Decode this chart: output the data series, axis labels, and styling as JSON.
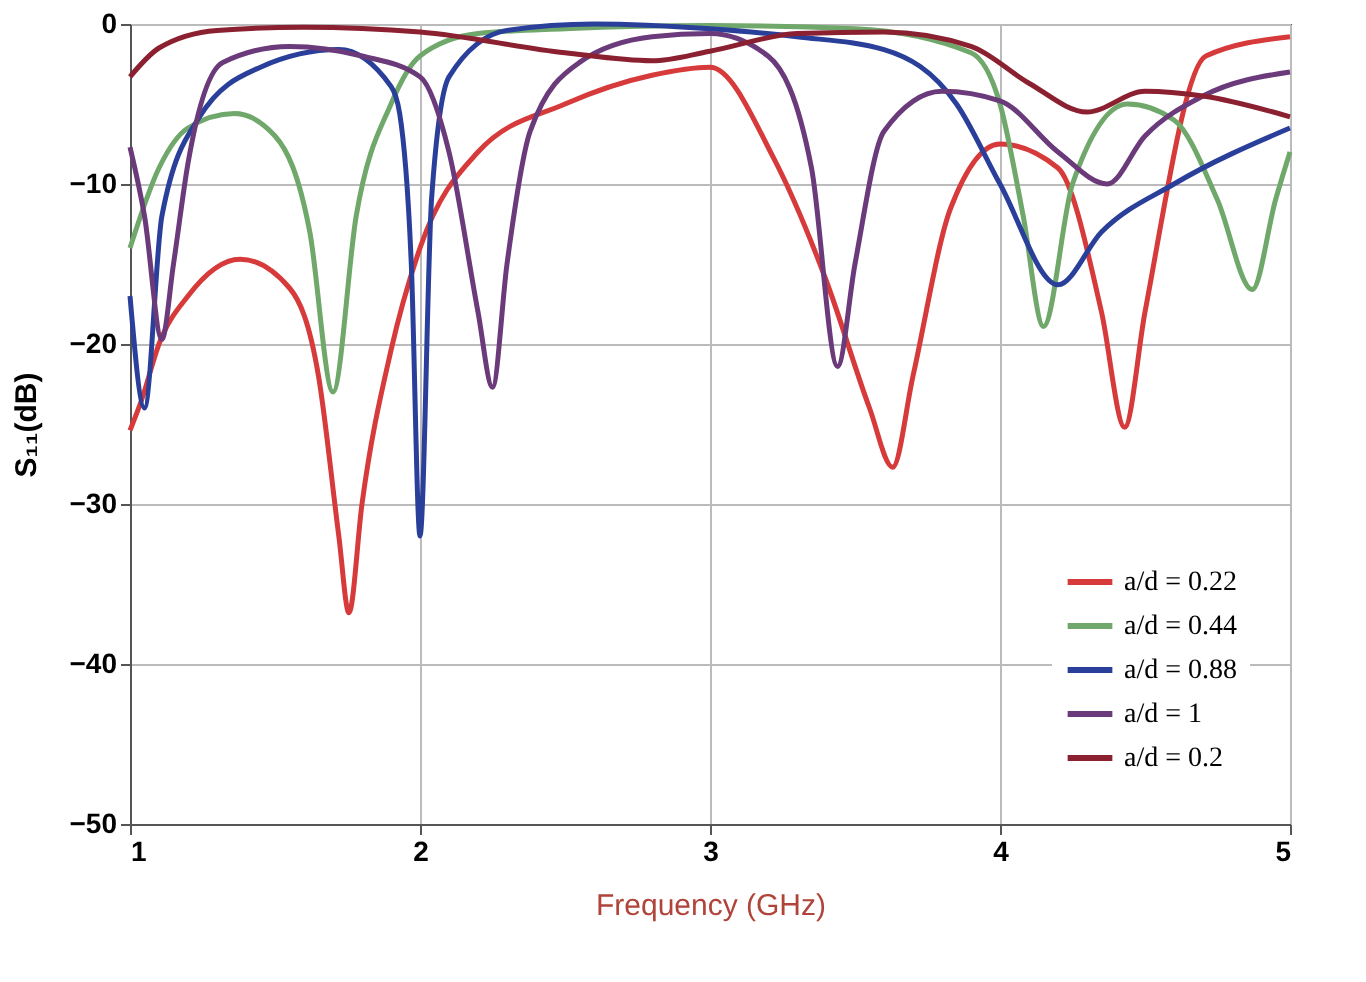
{
  "chart_data": {
    "type": "line",
    "xlabel": "Frequency (GHz)",
    "ylabel": "S₁₁(dB)",
    "xlim": [
      1,
      5
    ],
    "ylim": [
      -50,
      0
    ],
    "xticks": [
      1,
      2,
      3,
      4,
      5
    ],
    "yticks": [
      -50,
      -40,
      -30,
      -20,
      -10,
      0
    ],
    "grid": true,
    "legend": "bottom right",
    "line_style": "solid",
    "marker": "none",
    "series": [
      {
        "name": "a/d = 0.22",
        "color": "#d63a3a",
        "x": [
          1.0,
          1.04,
          1.1,
          1.2,
          1.38,
          1.55,
          1.65,
          1.72,
          1.755,
          1.8,
          1.9,
          2.0,
          2.2,
          2.5,
          2.8,
          3.0,
          3.22,
          3.4,
          3.55,
          3.63,
          3.7,
          3.83,
          4.0,
          4.2,
          4.35,
          4.43,
          4.5,
          4.71,
          5.0
        ],
        "values": [
          -25.4,
          -23.5,
          -20,
          -17,
          -14.7,
          -16.5,
          -22,
          -32,
          -36.8,
          -30,
          -20.4,
          -14,
          -8,
          -5,
          -3.2,
          -2.7,
          -8.4,
          -16,
          -24,
          -27.7,
          -22,
          -11.5,
          -7.5,
          -9,
          -18,
          -25.2,
          -18,
          -2,
          -0.8
        ]
      },
      {
        "name": "a/d = 0.44",
        "color": "#6fa86a",
        "x": [
          1.0,
          1.1,
          1.2,
          1.36,
          1.5,
          1.62,
          1.7,
          1.78,
          1.9,
          2.0,
          2.2,
          2.5,
          3.0,
          3.5,
          3.9,
          4.0,
          4.08,
          4.15,
          4.25,
          4.44,
          4.6,
          4.75,
          4.87,
          4.95,
          5.0
        ],
        "values": [
          -14,
          -9,
          -6.5,
          -5.6,
          -7,
          -13,
          -23,
          -12,
          -5,
          -2,
          -0.6,
          -0.3,
          -0.1,
          -0.3,
          -1.8,
          -5,
          -12,
          -18.9,
          -10,
          -5,
          -6,
          -11,
          -16.6,
          -11,
          -8
        ]
      },
      {
        "name": "a/d = 0.88",
        "color": "#2a3f9a",
        "x": [
          1.0,
          1.05,
          1.11,
          1.24,
          1.45,
          1.72,
          1.9,
          1.93,
          1.97,
          2.0,
          2.04,
          2.1,
          2.3,
          2.6,
          3.0,
          3.3,
          3.6,
          3.85,
          4.0,
          4.2,
          4.35,
          4.6,
          5.0
        ],
        "values": [
          -17,
          -24,
          -12,
          -5.8,
          -2.7,
          -1.6,
          -3.9,
          -5.6,
          -15,
          -32,
          -10.9,
          -3.3,
          -0.4,
          0,
          -0.3,
          -0.8,
          -1.6,
          -5,
          -10,
          -16.3,
          -13,
          -10,
          -6.5
        ]
      },
      {
        "name": "a/d =  1",
        "color": "#6a3a7a",
        "x": [
          1.0,
          1.05,
          1.11,
          1.15,
          1.2,
          1.32,
          1.55,
          1.8,
          2.0,
          2.1,
          2.2,
          2.25,
          2.3,
          2.38,
          2.55,
          2.8,
          3.0,
          3.2,
          3.35,
          3.44,
          3.5,
          3.6,
          3.8,
          4.0,
          4.2,
          4.37,
          4.5,
          4.7,
          5.0
        ],
        "values": [
          -7.7,
          -12,
          -19.7,
          -15,
          -8.7,
          -2.4,
          -1.4,
          -2,
          -3.3,
          -8,
          -18,
          -22.7,
          -15,
          -6.7,
          -2.4,
          -0.8,
          -0.6,
          -2,
          -9,
          -21.4,
          -15,
          -6.7,
          -4.2,
          -4.8,
          -8,
          -10,
          -7,
          -4.5,
          -3
        ]
      },
      {
        "name": "a/d = 0.2",
        "color": "#8b2030",
        "x": [
          1.0,
          1.1,
          1.3,
          1.6,
          2.0,
          2.5,
          2.8,
          3.0,
          3.3,
          3.6,
          3.9,
          4.1,
          4.3,
          4.5,
          4.7,
          5.0
        ],
        "values": [
          -3.3,
          -1.5,
          -0.4,
          -0.2,
          -0.5,
          -1.8,
          -2.3,
          -1.7,
          -0.6,
          -0.5,
          -1.4,
          -3.7,
          -5.5,
          -4.2,
          -4.5,
          -5.8
        ]
      }
    ]
  }
}
